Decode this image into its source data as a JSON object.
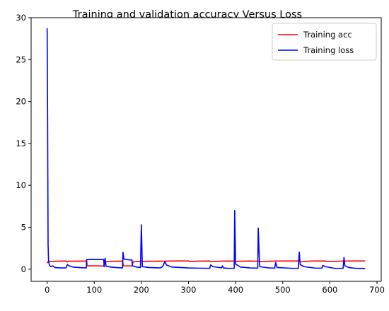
{
  "chart_data": {
    "type": "line",
    "title": "Training and validation accuracy Versus Loss",
    "xlabel": "",
    "ylabel": "",
    "xlim": [
      -34,
      709
    ],
    "ylim": [
      -1.45,
      30.0
    ],
    "x_ticks": [
      0,
      100,
      200,
      300,
      400,
      500,
      600,
      700
    ],
    "y_ticks": [
      0,
      5,
      10,
      15,
      20,
      25,
      30
    ],
    "grid": false,
    "legend_position": "top-right",
    "series": [
      {
        "name": "Training acc",
        "color": "#ff0000",
        "points": [
          [
            0,
            0.75
          ],
          [
            3,
            0.95
          ],
          [
            10,
            0.92
          ],
          [
            25,
            0.96
          ],
          [
            40,
            0.97
          ],
          [
            43,
            0.85
          ],
          [
            46,
            0.95
          ],
          [
            60,
            0.96
          ],
          [
            84,
            0.97
          ],
          [
            85,
            0.4
          ],
          [
            120,
            0.38
          ],
          [
            123,
            0.9
          ],
          [
            140,
            0.95
          ],
          [
            160,
            0.96
          ],
          [
            162,
            0.4
          ],
          [
            180,
            0.38
          ],
          [
            183,
            0.9
          ],
          [
            199,
            0.95
          ],
          [
            201,
            0.93
          ],
          [
            240,
            0.96
          ],
          [
            248,
            0.95
          ],
          [
            260,
            0.97
          ],
          [
            300,
            0.98
          ],
          [
            302,
            0.9
          ],
          [
            320,
            0.96
          ],
          [
            345,
            0.97
          ],
          [
            347,
            0.9
          ],
          [
            370,
            0.96
          ],
          [
            398,
            0.97
          ],
          [
            402,
            0.94
          ],
          [
            430,
            0.97
          ],
          [
            448,
            0.95
          ],
          [
            452,
            0.92
          ],
          [
            485,
            0.97
          ],
          [
            535,
            0.98
          ],
          [
            538,
            0.88
          ],
          [
            560,
            0.97
          ],
          [
            590,
            0.98
          ],
          [
            592,
            0.9
          ],
          [
            630,
            0.97
          ],
          [
            674,
            0.98
          ]
        ]
      },
      {
        "name": "Training loss",
        "color": "#0000ff",
        "points": [
          [
            0,
            28.7
          ],
          [
            1,
            18.0
          ],
          [
            2,
            3.0
          ],
          [
            3,
            0.9
          ],
          [
            5,
            0.45
          ],
          [
            8,
            0.3
          ],
          [
            12,
            0.4
          ],
          [
            16,
            0.2
          ],
          [
            20,
            0.18
          ],
          [
            30,
            0.15
          ],
          [
            40,
            0.15
          ],
          [
            43,
            0.55
          ],
          [
            46,
            0.4
          ],
          [
            55,
            0.25
          ],
          [
            70,
            0.18
          ],
          [
            83,
            0.15
          ],
          [
            84,
            1.15
          ],
          [
            100,
            1.15
          ],
          [
            120,
            1.15
          ],
          [
            121,
            0.3
          ],
          [
            123,
            1.3
          ],
          [
            125,
            0.35
          ],
          [
            135,
            0.25
          ],
          [
            150,
            0.18
          ],
          [
            160,
            0.15
          ],
          [
            161,
            2.0
          ],
          [
            163,
            1.2
          ],
          [
            175,
            1.1
          ],
          [
            180,
            1.1
          ],
          [
            181,
            0.4
          ],
          [
            190,
            0.25
          ],
          [
            198,
            0.2
          ],
          [
            200,
            5.3
          ],
          [
            202,
            0.3
          ],
          [
            215,
            0.2
          ],
          [
            240,
            0.15
          ],
          [
            245,
            0.3
          ],
          [
            250,
            0.9
          ],
          [
            253,
            0.5
          ],
          [
            265,
            0.25
          ],
          [
            300,
            0.15
          ],
          [
            320,
            0.12
          ],
          [
            345,
            0.1
          ],
          [
            347,
            0.5
          ],
          [
            352,
            0.3
          ],
          [
            370,
            0.15
          ],
          [
            372,
            0.4
          ],
          [
            374,
            0.15
          ],
          [
            385,
            0.1
          ],
          [
            397,
            0.1
          ],
          [
            398,
            7.0
          ],
          [
            400,
            0.6
          ],
          [
            410,
            0.25
          ],
          [
            430,
            0.15
          ],
          [
            447,
            0.12
          ],
          [
            448,
            4.9
          ],
          [
            451,
            0.3
          ],
          [
            470,
            0.15
          ],
          [
            483,
            0.12
          ],
          [
            485,
            0.8
          ],
          [
            488,
            0.2
          ],
          [
            520,
            0.1
          ],
          [
            533,
            0.1
          ],
          [
            535,
            2.05
          ],
          [
            537,
            0.55
          ],
          [
            545,
            0.3
          ],
          [
            570,
            0.12
          ],
          [
            583,
            0.12
          ],
          [
            585,
            0.45
          ],
          [
            590,
            0.3
          ],
          [
            610,
            0.1
          ],
          [
            628,
            0.1
          ],
          [
            630,
            1.4
          ],
          [
            632,
            0.4
          ],
          [
            640,
            0.2
          ],
          [
            655,
            0.1
          ],
          [
            674,
            0.08
          ]
        ]
      }
    ]
  }
}
